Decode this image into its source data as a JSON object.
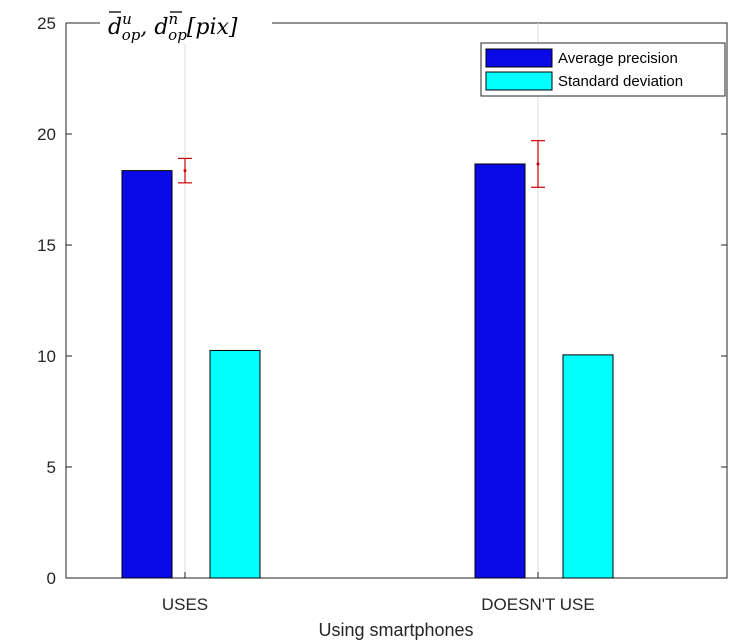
{
  "chart_data": {
    "type": "bar",
    "categories": [
      "USES",
      "DOESN'T USE"
    ],
    "series": [
      {
        "name": "Average precision",
        "values": [
          18.35,
          18.65
        ],
        "color": "#0a0ae6"
      },
      {
        "name": "Standard deviation",
        "values": [
          10.25,
          10.05
        ],
        "color": "#00ffff"
      }
    ],
    "error_bars": [
      {
        "mean": 18.35,
        "low": 17.8,
        "high": 18.9
      },
      {
        "mean": 18.65,
        "low": 17.6,
        "high": 19.7
      }
    ],
    "error_bar_color": "#cc0000",
    "xlabel": "Using smartphones",
    "ylabel": {
      "base1": "d",
      "sup1": "u",
      "sub1": "op",
      "sep": ", ",
      "base2": "d",
      "sup2": "n",
      "sub2": "op",
      "unit": "[pix]"
    },
    "ylim": [
      0,
      25
    ],
    "yticks": [
      0,
      5,
      10,
      15,
      20,
      25
    ],
    "grid": "x-only",
    "legend_position": "top-right"
  }
}
